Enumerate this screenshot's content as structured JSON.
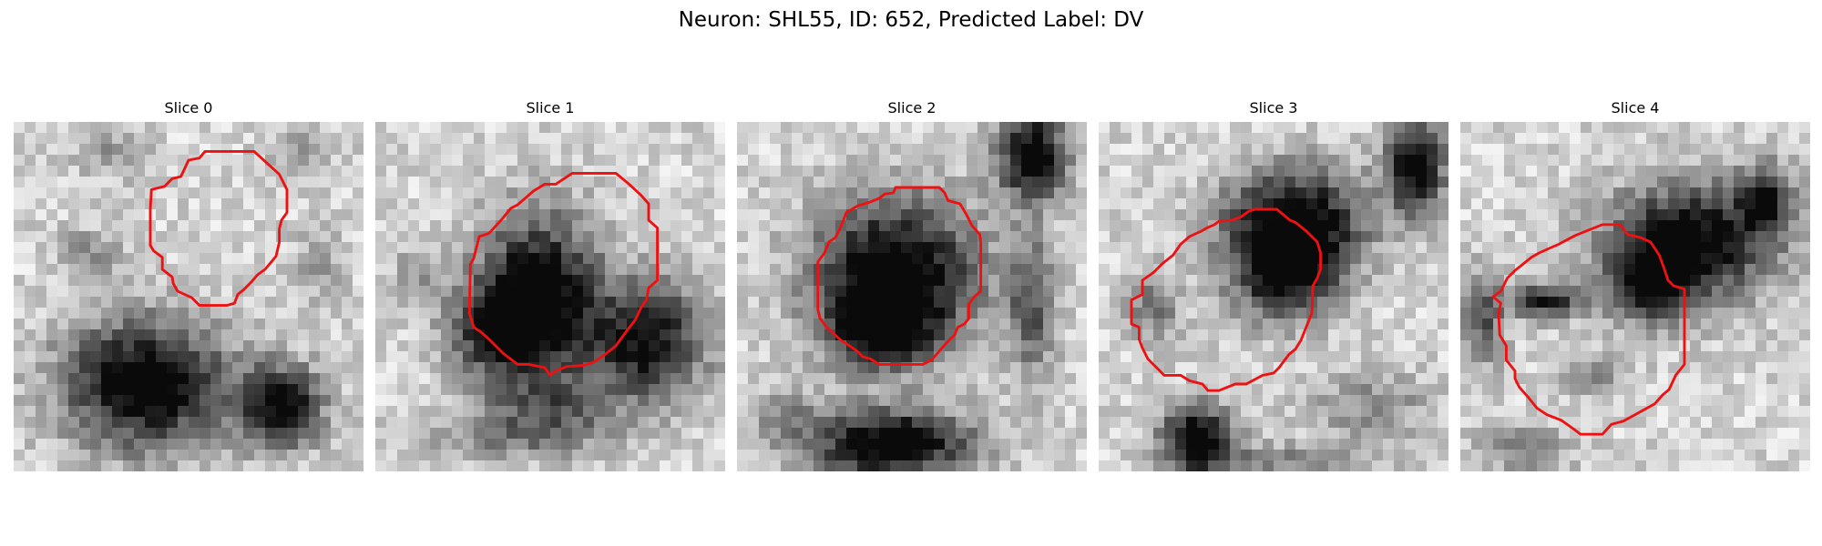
{
  "figure": {
    "title": "Neuron: SHL55, ID: 652, Predicted Label: DV"
  },
  "panels": [
    {
      "title": "Slice 0",
      "blobs": [
        {
          "cx": 12,
          "cy": 24,
          "rx": 7,
          "ry": 5.5,
          "a": 0.95
        },
        {
          "cx": 7,
          "cy": 12,
          "rx": 2.5,
          "ry": 2,
          "a": 0.3
        },
        {
          "cx": 24.5,
          "cy": 26,
          "rx": 3.5,
          "ry": 3.5,
          "a": 0.85
        },
        {
          "cx": 9,
          "cy": 3,
          "rx": 3,
          "ry": 2,
          "a": 0.25
        },
        {
          "cx": 26,
          "cy": 3,
          "rx": 3,
          "ry": 2.5,
          "a": 0.2
        },
        {
          "cx": 28,
          "cy": 13,
          "rx": 2,
          "ry": 3,
          "a": 0.25
        }
      ],
      "contour": [
        [
          15.3,
          5
        ],
        [
          16,
          3.5
        ],
        [
          17,
          3.3
        ],
        [
          17.5,
          2.7
        ],
        [
          19,
          2.7
        ],
        [
          22,
          2.7
        ],
        [
          23.2,
          3.8
        ],
        [
          24.3,
          4.8
        ],
        [
          25,
          6.2
        ],
        [
          25,
          8.3
        ],
        [
          24.5,
          9
        ],
        [
          24.3,
          9.8
        ],
        [
          24.3,
          11
        ],
        [
          24,
          12.3
        ],
        [
          23,
          13.5
        ],
        [
          22.3,
          14
        ],
        [
          21.7,
          14.7
        ],
        [
          21,
          15.4
        ],
        [
          20.5,
          15.8
        ],
        [
          20.2,
          16.6
        ],
        [
          19.5,
          16.8
        ],
        [
          17,
          16.8
        ],
        [
          16.3,
          16.1
        ],
        [
          15,
          15.5
        ],
        [
          14.6,
          14.8
        ],
        [
          14.5,
          14.2
        ],
        [
          13.6,
          13.5
        ],
        [
          13.6,
          12.4
        ],
        [
          12.8,
          11.8
        ],
        [
          12.5,
          11.3
        ],
        [
          12.5,
          8
        ],
        [
          12.6,
          6.2
        ],
        [
          13.8,
          5.9
        ],
        [
          14.5,
          5.2
        ]
      ]
    },
    {
      "title": "Slice 1",
      "blobs": [
        {
          "cx": 15,
          "cy": 16,
          "rx": 5,
          "ry": 7,
          "a": 0.95
        },
        {
          "cx": 11,
          "cy": 19,
          "rx": 4,
          "ry": 4,
          "a": 0.6
        },
        {
          "cx": 25,
          "cy": 20,
          "rx": 5,
          "ry": 5,
          "a": 0.8
        },
        {
          "cx": 16,
          "cy": 26,
          "rx": 6,
          "ry": 2.5,
          "a": 0.35
        },
        {
          "cx": 13,
          "cy": 29,
          "rx": 8,
          "ry": 2,
          "a": 0.3
        },
        {
          "cx": 4,
          "cy": 14,
          "rx": 2.5,
          "ry": 3,
          "a": 0.2
        }
      ],
      "contour": [
        [
          11.5,
          9
        ],
        [
          12.4,
          7.9
        ],
        [
          13,
          7.6
        ],
        [
          14.5,
          6.3
        ],
        [
          15.5,
          5.7
        ],
        [
          16.5,
          5.7
        ],
        [
          18,
          4.7
        ],
        [
          22,
          4.7
        ],
        [
          23.1,
          5.6
        ],
        [
          24.3,
          6.7
        ],
        [
          25,
          7.5
        ],
        [
          25,
          9
        ],
        [
          25.8,
          9.7
        ],
        [
          25.8,
          14.5
        ],
        [
          25,
          15.2
        ],
        [
          24.8,
          16.3
        ],
        [
          24.3,
          17
        ],
        [
          23.8,
          18.1
        ],
        [
          23.1,
          19
        ],
        [
          22,
          20.5
        ],
        [
          21,
          21.3
        ],
        [
          20,
          22
        ],
        [
          19,
          22.3
        ],
        [
          17.5,
          22.4
        ],
        [
          16.5,
          22.8
        ],
        [
          16,
          23.2
        ],
        [
          15.5,
          22.5
        ],
        [
          14,
          22.2
        ],
        [
          13,
          22.2
        ],
        [
          11.7,
          21.2
        ],
        [
          11,
          20.5
        ],
        [
          10.3,
          19.8
        ],
        [
          9.6,
          19.2
        ],
        [
          9,
          18.8
        ],
        [
          8.6,
          17.5
        ],
        [
          8.7,
          13
        ],
        [
          9,
          12.5
        ],
        [
          9.5,
          10.5
        ],
        [
          10.4,
          10.2
        ]
      ]
    },
    {
      "title": "Slice 2",
      "blobs": [
        {
          "cx": 14.5,
          "cy": 14,
          "rx": 7,
          "ry": 6.5,
          "a": 0.98
        },
        {
          "cx": 13,
          "cy": 19,
          "rx": 4,
          "ry": 3,
          "a": 0.7
        },
        {
          "cx": 14,
          "cy": 29.5,
          "rx": 7,
          "ry": 3,
          "a": 0.95
        },
        {
          "cx": 27,
          "cy": 3,
          "rx": 3,
          "ry": 4,
          "a": 0.9
        },
        {
          "cx": 27,
          "cy": 17,
          "rx": 2,
          "ry": 6,
          "a": 0.5
        },
        {
          "cx": 4,
          "cy": 27,
          "rx": 3,
          "ry": 2,
          "a": 0.25
        }
      ],
      "contour": [
        [
          10,
          8.3
        ],
        [
          11,
          7.7
        ],
        [
          12,
          7.4
        ],
        [
          13,
          7
        ],
        [
          13.5,
          6.6
        ],
        [
          14.3,
          6.5
        ],
        [
          14.5,
          6
        ],
        [
          18.5,
          6
        ],
        [
          19,
          6.5
        ],
        [
          19.3,
          7.2
        ],
        [
          20.4,
          7.5
        ],
        [
          21,
          8.5
        ],
        [
          21.5,
          9.5
        ],
        [
          22.2,
          10.3
        ],
        [
          22.3,
          11
        ],
        [
          22.3,
          15.5
        ],
        [
          21.7,
          16
        ],
        [
          21.2,
          16.7
        ],
        [
          21.2,
          18
        ],
        [
          20.8,
          18.5
        ],
        [
          20.2,
          18.8
        ],
        [
          19.9,
          19.5
        ],
        [
          19.1,
          20.3
        ],
        [
          18.5,
          21
        ],
        [
          17.8,
          21.8
        ],
        [
          17,
          22.2
        ],
        [
          13,
          22.2
        ],
        [
          12.2,
          21.7
        ],
        [
          11.5,
          21.5
        ],
        [
          11,
          21
        ],
        [
          10,
          20.3
        ],
        [
          9.5,
          20
        ],
        [
          8.2,
          18.8
        ],
        [
          7.6,
          18
        ],
        [
          7.4,
          17.2
        ],
        [
          7.4,
          12.8
        ],
        [
          8,
          12
        ],
        [
          8.4,
          11
        ],
        [
          9,
          10.6
        ],
        [
          9.5,
          9.6
        ]
      ]
    },
    {
      "title": "Slice 3",
      "blobs": [
        {
          "cx": 18,
          "cy": 9,
          "rx": 6,
          "ry": 4.5,
          "a": 0.9
        },
        {
          "cx": 17,
          "cy": 14,
          "rx": 4.5,
          "ry": 4,
          "a": 0.75
        },
        {
          "cx": 29,
          "cy": 4,
          "rx": 2.5,
          "ry": 4,
          "a": 0.9
        },
        {
          "cx": 9,
          "cy": 29,
          "rx": 3,
          "ry": 3,
          "a": 0.95
        },
        {
          "cx": 5,
          "cy": 17,
          "rx": 2.5,
          "ry": 3,
          "a": 0.35
        },
        {
          "cx": 25,
          "cy": 26,
          "rx": 5,
          "ry": 3,
          "a": 0.3
        },
        {
          "cx": 17,
          "cy": 31,
          "rx": 8,
          "ry": 1.5,
          "a": 0.3
        }
      ],
      "contour": [
        [
          4,
          14.5
        ],
        [
          5,
          13.8
        ],
        [
          5.8,
          13
        ],
        [
          6.8,
          12.2
        ],
        [
          7.5,
          11.2
        ],
        [
          8.3,
          10.5
        ],
        [
          9.4,
          10
        ],
        [
          9.9,
          9.7
        ],
        [
          10.6,
          9.4
        ],
        [
          11,
          9.1
        ],
        [
          12.2,
          9
        ],
        [
          13,
          8.7
        ],
        [
          13.7,
          8.2
        ],
        [
          14.3,
          8
        ],
        [
          16.3,
          8
        ],
        [
          17.5,
          9
        ],
        [
          18,
          9.2
        ],
        [
          19,
          10
        ],
        [
          20,
          11
        ],
        [
          20.3,
          12
        ],
        [
          20.3,
          13.5
        ],
        [
          20,
          14.3
        ],
        [
          19.6,
          15
        ],
        [
          19.5,
          17.5
        ],
        [
          19.1,
          18.5
        ],
        [
          18.5,
          20
        ],
        [
          18,
          20.8
        ],
        [
          17.4,
          21.3
        ],
        [
          16.5,
          22.5
        ],
        [
          16,
          23
        ],
        [
          15,
          23.2
        ],
        [
          13.5,
          24
        ],
        [
          12.5,
          24
        ],
        [
          11,
          24.6
        ],
        [
          10,
          24.6
        ],
        [
          9.5,
          24
        ],
        [
          8.3,
          23.7
        ],
        [
          7.5,
          23.2
        ],
        [
          6,
          23.2
        ],
        [
          5.3,
          22.5
        ],
        [
          4.5,
          21.7
        ],
        [
          4,
          20.7
        ],
        [
          3.7,
          19.9
        ],
        [
          3.7,
          18.8
        ],
        [
          3,
          18.5
        ],
        [
          3,
          16.3
        ],
        [
          4,
          15.8
        ]
      ]
    },
    {
      "title": "Slice 4",
      "blobs": [
        {
          "cx": 21,
          "cy": 11,
          "rx": 7,
          "ry": 5,
          "a": 0.88
        },
        {
          "cx": 17.5,
          "cy": 15,
          "rx": 3.5,
          "ry": 3,
          "a": 0.7
        },
        {
          "cx": 28,
          "cy": 7,
          "rx": 2.5,
          "ry": 3,
          "a": 0.6
        },
        {
          "cx": 8,
          "cy": 16.5,
          "rx": 3,
          "ry": 1.5,
          "a": 0.75
        },
        {
          "cx": 2,
          "cy": 18,
          "rx": 2,
          "ry": 4,
          "a": 0.5
        },
        {
          "cx": 12,
          "cy": 23,
          "rx": 3,
          "ry": 2,
          "a": 0.25
        },
        {
          "cx": 6,
          "cy": 30,
          "rx": 4,
          "ry": 2,
          "a": 0.3
        }
      ],
      "contour": [
        [
          3.7,
          15.5
        ],
        [
          4.3,
          14.3
        ],
        [
          5,
          13.6
        ],
        [
          6,
          12.8
        ],
        [
          6.5,
          12.4
        ],
        [
          7.2,
          12
        ],
        [
          8.3,
          11.5
        ],
        [
          9,
          11.2
        ],
        [
          10.5,
          10.4
        ],
        [
          12,
          9.8
        ],
        [
          13,
          9.4
        ],
        [
          14.6,
          9.4
        ],
        [
          15.3,
          10.3
        ],
        [
          16.5,
          10.6
        ],
        [
          17.4,
          11
        ],
        [
          18.2,
          12.2
        ],
        [
          18.6,
          13.3
        ],
        [
          19,
          14.5
        ],
        [
          19.5,
          15
        ],
        [
          20.5,
          15.3
        ],
        [
          20.5,
          22.2
        ],
        [
          19.7,
          23.2
        ],
        [
          19.1,
          24.5
        ],
        [
          18.5,
          25
        ],
        [
          17.8,
          25.8
        ],
        [
          16,
          26.8
        ],
        [
          14.9,
          27.4
        ],
        [
          13.8,
          27.7
        ],
        [
          13,
          28.6
        ],
        [
          11,
          28.6
        ],
        [
          10.2,
          28
        ],
        [
          9.2,
          27.3
        ],
        [
          7.9,
          26.8
        ],
        [
          7,
          26.2
        ],
        [
          6.2,
          25.2
        ],
        [
          5.4,
          24.3
        ],
        [
          5,
          23.5
        ],
        [
          5,
          22.8
        ],
        [
          4.2,
          21.8
        ],
        [
          4.2,
          20.5
        ],
        [
          3.6,
          19.5
        ],
        [
          3.5,
          17.5
        ],
        [
          3.7,
          16.6
        ],
        [
          3,
          16
        ]
      ]
    }
  ]
}
